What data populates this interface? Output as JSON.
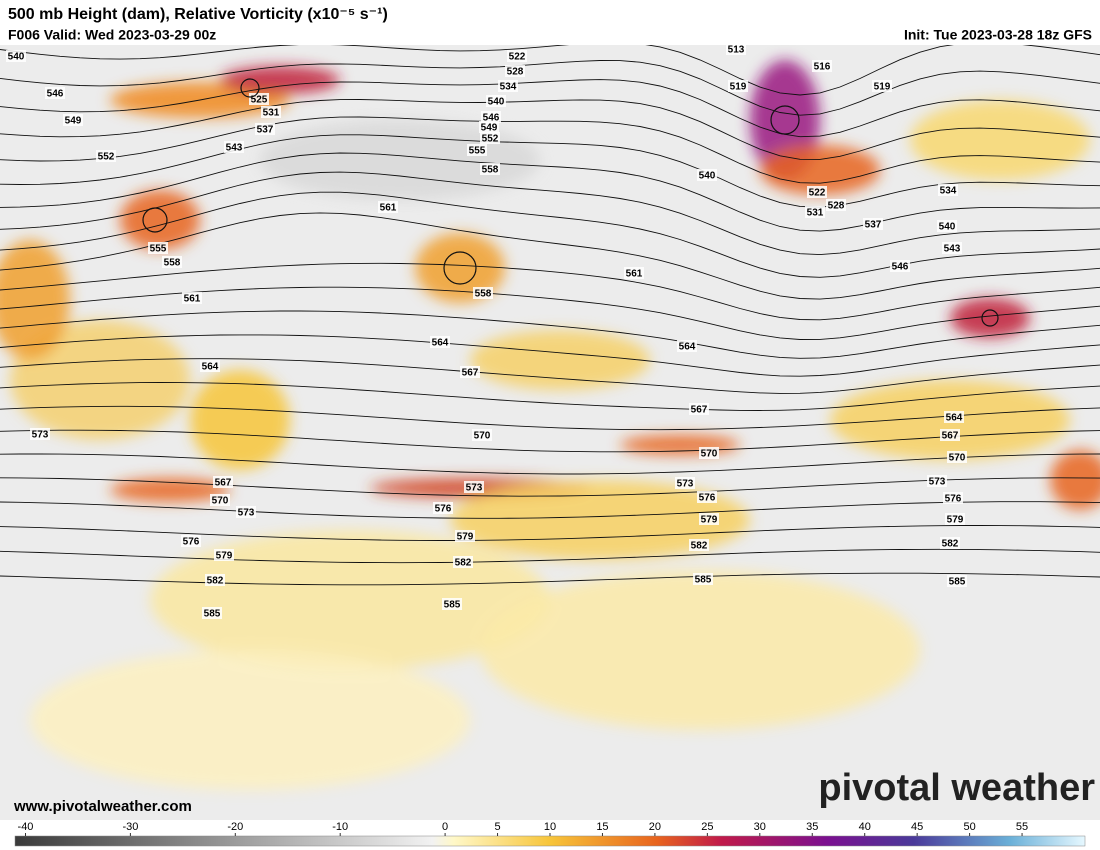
{
  "header": {
    "title": "500 mb Height (dam), Relative Vorticity (x10⁻⁵ s⁻¹)",
    "valid": "F006 Valid: Wed 2023-03-29 00z",
    "init": "Init: Tue 2023-03-28 18z GFS"
  },
  "map": {
    "contour_labels": [
      "540",
      "546",
      "549",
      "552",
      "543",
      "537",
      "531",
      "525",
      "522",
      "528",
      "534",
      "540",
      "546",
      "549",
      "552",
      "555",
      "558",
      "513",
      "516",
      "519",
      "519",
      "540",
      "522",
      "528",
      "531",
      "537",
      "534",
      "540",
      "543",
      "546",
      "561",
      "555",
      "558",
      "561",
      "558",
      "561",
      "564",
      "564",
      "564",
      "567",
      "567",
      "564",
      "567",
      "570",
      "570",
      "570",
      "573",
      "567",
      "570",
      "573",
      "573",
      "573",
      "573",
      "576",
      "576",
      "576",
      "579",
      "579",
      "579",
      "582",
      "582",
      "582",
      "585",
      "585",
      "585",
      "585",
      "582",
      "579",
      "576"
    ]
  },
  "colorbar": {
    "range": [
      -41,
      61
    ],
    "ticks": [
      -40,
      -30,
      -20,
      -10,
      0,
      5,
      10,
      15,
      20,
      25,
      30,
      35,
      40,
      45,
      50,
      55
    ]
  },
  "footer": {
    "website": "www.pivotalweather.com",
    "logo": "pivotal weather"
  }
}
